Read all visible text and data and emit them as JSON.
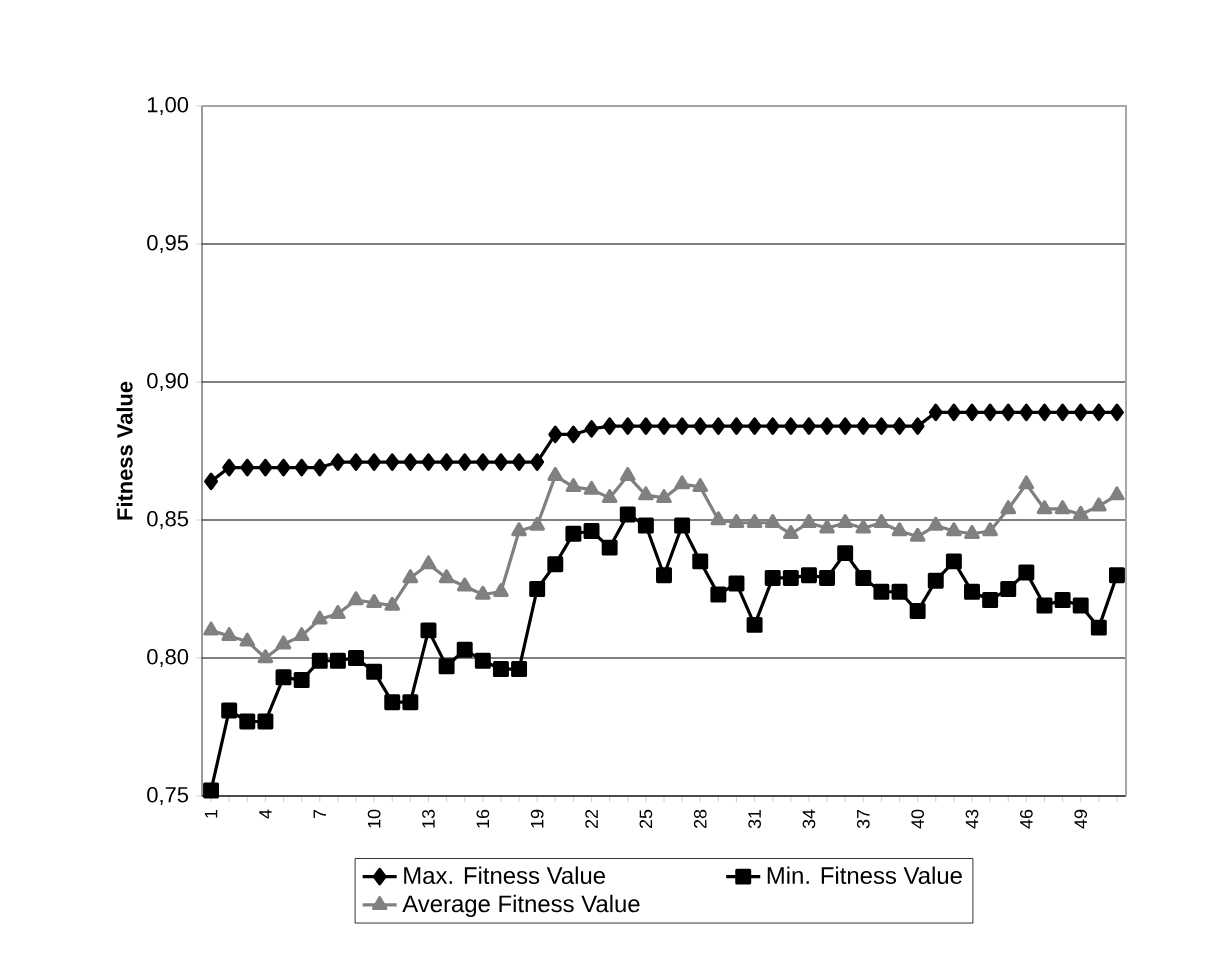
{
  "chart_data": {
    "type": "line",
    "ylabel": "Fitness Value",
    "categories": [
      "1",
      null,
      null,
      "4",
      null,
      null,
      "7",
      null,
      null,
      "10",
      null,
      null,
      "13",
      null,
      null,
      "16",
      null,
      null,
      "19",
      null,
      null,
      "22",
      null,
      null,
      "25",
      null,
      null,
      "28",
      null,
      null,
      "31",
      null,
      null,
      "34",
      null,
      null,
      "37",
      null,
      null,
      "40",
      null,
      null,
      "43",
      null,
      null,
      "46",
      null,
      null,
      "49",
      null,
      null
    ],
    "series": [
      {
        "name": "Max. Fitness Value",
        "color": "#000000",
        "marker": "diamond",
        "values": [
          0.864,
          0.869,
          0.869,
          0.869,
          0.869,
          0.869,
          0.869,
          0.871,
          0.871,
          0.871,
          0.871,
          0.871,
          0.871,
          0.871,
          0.871,
          0.871,
          0.871,
          0.871,
          0.871,
          0.881,
          0.881,
          0.883,
          0.884,
          0.884,
          0.884,
          0.884,
          0.884,
          0.884,
          0.884,
          0.884,
          0.884,
          0.884,
          0.884,
          0.884,
          0.884,
          0.884,
          0.884,
          0.884,
          0.884,
          0.884,
          0.889,
          0.889,
          0.889,
          0.889,
          0.889,
          0.889,
          0.889,
          0.889,
          0.889,
          0.889,
          0.889
        ]
      },
      {
        "name": "Min. Fitness Value",
        "color": "#000000",
        "marker": "square",
        "values": [
          0.752,
          0.781,
          0.777,
          0.777,
          0.793,
          0.792,
          0.799,
          0.799,
          0.8,
          0.795,
          0.784,
          0.784,
          0.81,
          0.797,
          0.803,
          0.799,
          0.796,
          0.796,
          0.825,
          0.834,
          0.845,
          0.846,
          0.84,
          0.852,
          0.848,
          0.83,
          0.848,
          0.835,
          0.823,
          0.827,
          0.812,
          0.829,
          0.829,
          0.83,
          0.829,
          0.838,
          0.829,
          0.824,
          0.824,
          0.817,
          0.828,
          0.835,
          0.824,
          0.821,
          0.825,
          0.831,
          0.819,
          0.821,
          0.819,
          0.811,
          0.83
        ]
      },
      {
        "name": "Average Fitness Value",
        "color": "#808080",
        "marker": "triangle",
        "values": [
          0.81,
          0.808,
          0.806,
          0.8,
          0.805,
          0.808,
          0.814,
          0.816,
          0.821,
          0.82,
          0.819,
          0.829,
          0.834,
          0.829,
          0.826,
          0.823,
          0.824,
          0.846,
          0.848,
          0.866,
          0.862,
          0.861,
          0.858,
          0.866,
          0.859,
          0.858,
          0.863,
          0.862,
          0.85,
          0.849,
          0.849,
          0.849,
          0.845,
          0.849,
          0.847,
          0.849,
          0.847,
          0.849,
          0.846,
          0.844,
          0.848,
          0.846,
          0.845,
          0.846,
          0.854,
          0.863,
          0.854,
          0.854,
          0.852,
          0.855,
          0.859
        ]
      }
    ],
    "ylim": [
      0.75,
      1.0
    ],
    "yticks": [
      {
        "value": 0.75,
        "label": "0,75"
      },
      {
        "value": 0.8,
        "label": "0,80"
      },
      {
        "value": 0.85,
        "label": "0,85"
      },
      {
        "value": 0.9,
        "label": "0,90"
      },
      {
        "value": 0.95,
        "label": "0,95"
      },
      {
        "value": 1.0,
        "label": "1,00"
      }
    ],
    "grid": "y",
    "legend": "bottom",
    "line_style": "solid"
  }
}
